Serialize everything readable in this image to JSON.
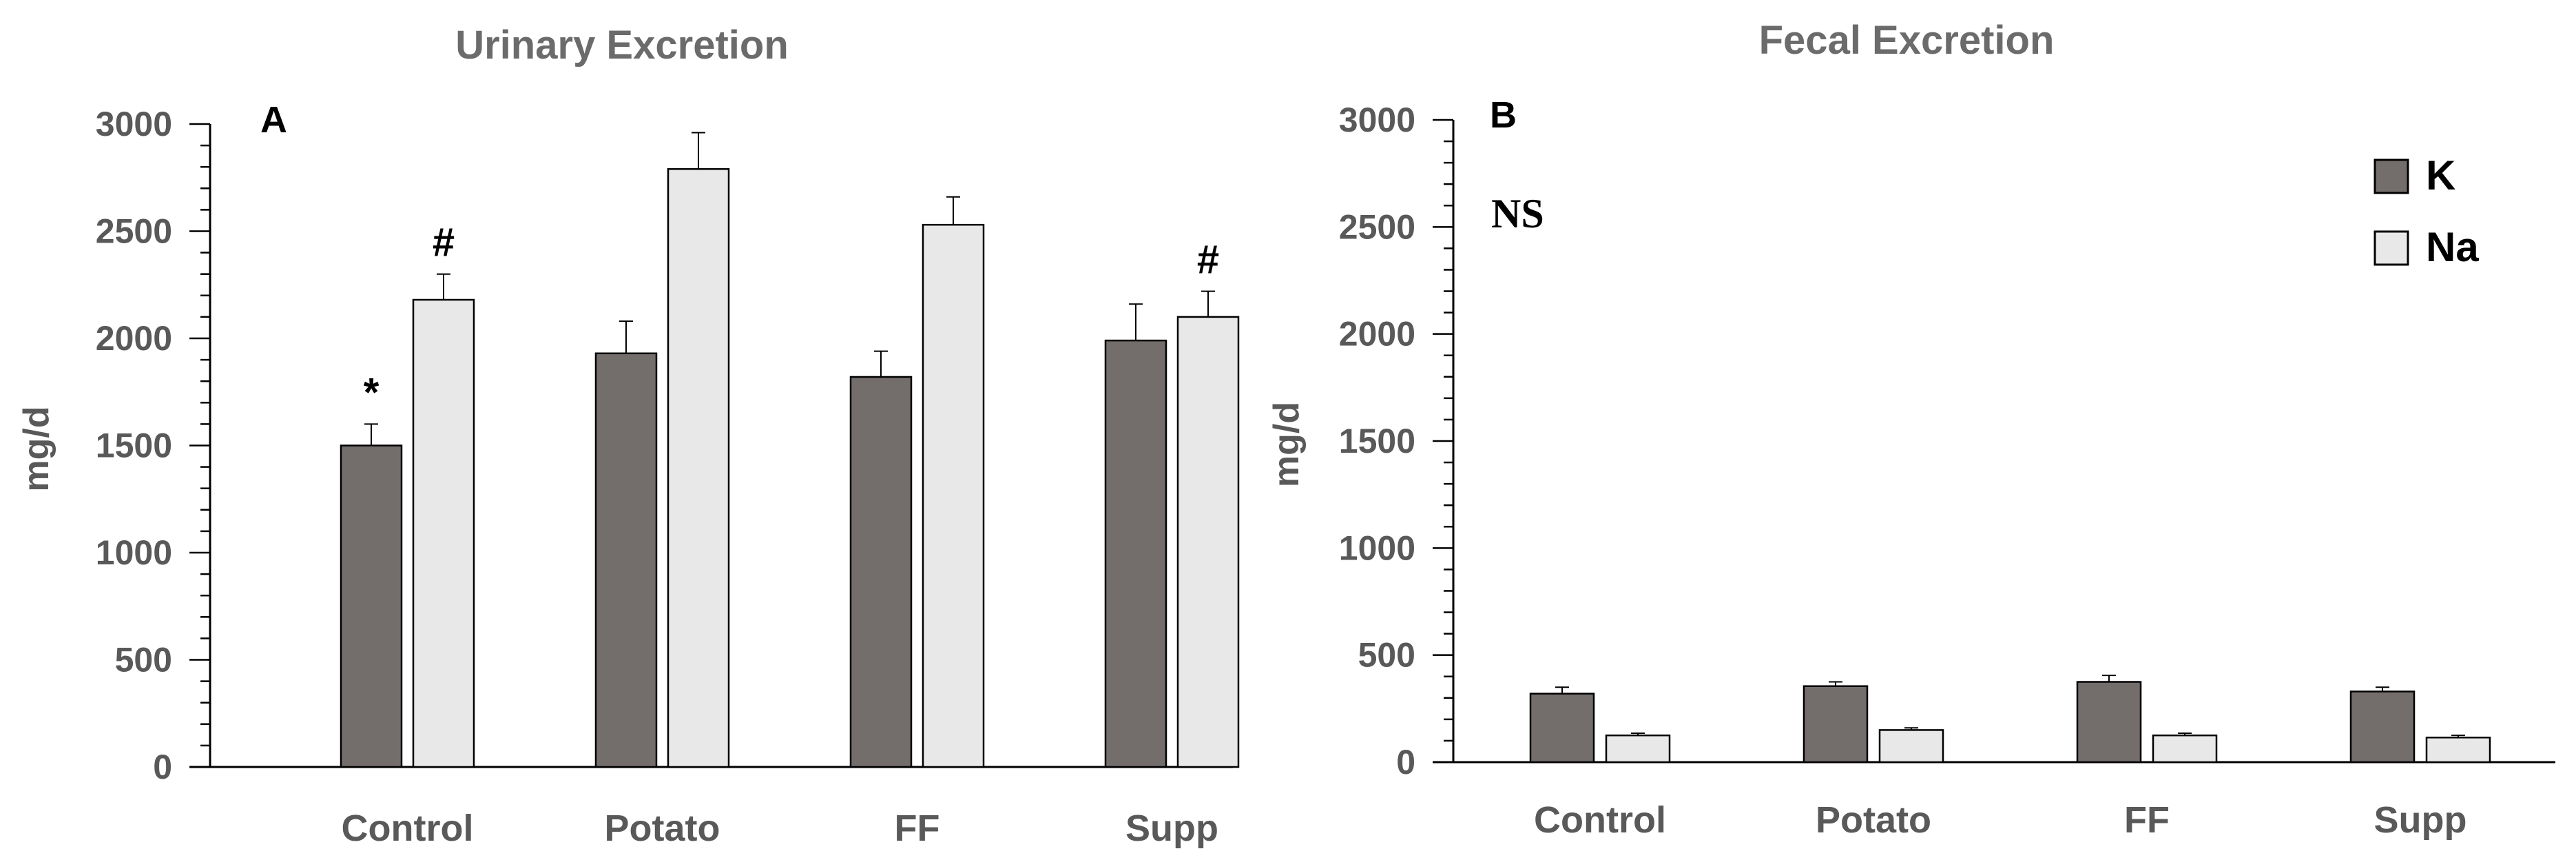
{
  "chart_data": [
    {
      "type": "bar",
      "panel_label": "A",
      "title": "Urinary Excretion",
      "ylabel": "mg/d",
      "xlabel": "",
      "ylim": [
        0,
        3000
      ],
      "yticks": [
        0,
        500,
        1000,
        1500,
        2000,
        2500,
        3000
      ],
      "categories": [
        "Control",
        "Potato",
        "FF",
        "Supp"
      ],
      "series": [
        {
          "name": "K",
          "color": "#736e6c",
          "values": [
            1500,
            1930,
            1820,
            1990
          ],
          "errors": [
            100,
            150,
            120,
            170
          ]
        },
        {
          "name": "Na",
          "color": "#e8e8e8",
          "values": [
            2180,
            2790,
            2530,
            2100
          ],
          "errors": [
            120,
            170,
            130,
            120
          ]
        }
      ],
      "annotations": [
        {
          "text": "*",
          "series": "K",
          "category": "Control"
        },
        {
          "text": "#",
          "series": "Na",
          "category": "Control"
        },
        {
          "text": "#",
          "series": "Na",
          "category": "Supp"
        }
      ],
      "grid": false
    },
    {
      "type": "bar",
      "panel_label": "B",
      "title": "Fecal Excretion",
      "ylabel": "mg/d",
      "xlabel": "",
      "ylim": [
        0,
        3000
      ],
      "yticks": [
        0,
        500,
        1000,
        1500,
        2000,
        2500,
        3000
      ],
      "categories": [
        "Control",
        "Potato",
        "FF",
        "Supp"
      ],
      "series": [
        {
          "name": "K",
          "color": "#736e6c",
          "values": [
            320,
            355,
            375,
            330
          ],
          "errors": [
            30,
            20,
            30,
            20
          ]
        },
        {
          "name": "Na",
          "color": "#e8e8e8",
          "values": [
            125,
            150,
            125,
            115
          ],
          "errors": [
            10,
            10,
            10,
            10
          ]
        }
      ],
      "note": "NS",
      "legend": {
        "position": "top-right",
        "entries": [
          "K",
          "Na"
        ]
      },
      "grid": false
    }
  ]
}
